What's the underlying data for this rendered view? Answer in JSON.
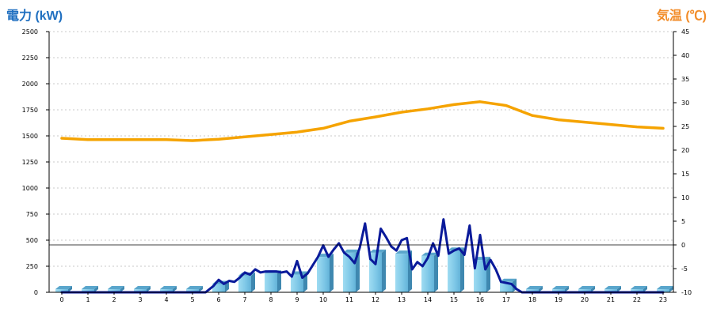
{
  "chart_data": {
    "type": "bar",
    "ylabel_left": "電力 (kW)",
    "ylabel_right": "気温 (℃)",
    "y_left_ticks": [
      "0",
      "250",
      "500",
      "750",
      "1000",
      "1250",
      "1500",
      "1750",
      "2000",
      "2250",
      "2500"
    ],
    "y_left_range": [
      0,
      2500
    ],
    "y_right_ticks": [
      "-10",
      "-5",
      "0",
      "5",
      "10",
      "15",
      "20",
      "25",
      "30",
      "35",
      "40",
      "45"
    ],
    "y_right_range": [
      -10,
      45
    ],
    "x_categories": [
      "0",
      "1",
      "2",
      "3",
      "4",
      "5",
      "6",
      "7",
      "8",
      "9",
      "10",
      "11",
      "12",
      "13",
      "14",
      "15",
      "16",
      "17",
      "18",
      "19",
      "20",
      "21",
      "22",
      "23"
    ],
    "grid": "horizontal dotted",
    "series": [
      {
        "kind": "bar",
        "axis": "left",
        "values": [
          30,
          30,
          30,
          30,
          30,
          30,
          80,
          160,
          180,
          170,
          340,
          380,
          380,
          370,
          350,
          400,
          310,
          100,
          30,
          30,
          30,
          30,
          30,
          30
        ]
      },
      {
        "kind": "line",
        "axis": "left",
        "x": [
          0,
          0.5,
          1,
          1.5,
          2,
          2.5,
          3,
          3.5,
          4,
          4.5,
          5,
          5.5,
          5.8,
          6,
          6.2,
          6.4,
          6.6,
          6.8,
          7,
          7.2,
          7.4,
          7.6,
          7.8,
          8,
          8.2,
          8.4,
          8.6,
          8.8,
          9,
          9.2,
          9.4,
          9.6,
          9.8,
          10,
          10.2,
          10.4,
          10.6,
          10.8,
          11,
          11.2,
          11.4,
          11.6,
          11.8,
          12,
          12.2,
          12.4,
          12.6,
          12.8,
          13,
          13.2,
          13.4,
          13.6,
          13.8,
          14,
          14.2,
          14.4,
          14.6,
          14.8,
          15,
          15.2,
          15.4,
          15.6,
          15.8,
          16,
          16.2,
          16.4,
          16.6,
          16.8,
          17,
          17.2,
          17.4,
          17.6,
          18,
          18.5,
          19,
          19.5,
          20,
          20.5,
          21,
          21.5,
          22,
          22.5,
          23
        ],
        "values": [
          0,
          0,
          0,
          0,
          0,
          0,
          0,
          0,
          0,
          0,
          0,
          0,
          60,
          120,
          80,
          110,
          100,
          140,
          190,
          170,
          220,
          190,
          200,
          200,
          200,
          190,
          200,
          150,
          300,
          140,
          180,
          260,
          340,
          450,
          340,
          410,
          470,
          380,
          340,
          280,
          430,
          660,
          320,
          270,
          610,
          530,
          440,
          400,
          500,
          520,
          220,
          290,
          250,
          330,
          470,
          350,
          700,
          370,
          400,
          420,
          360,
          640,
          230,
          550,
          220,
          310,
          220,
          100,
          90,
          80,
          30,
          0,
          0,
          0,
          0,
          0,
          0,
          0,
          0,
          0,
          0,
          0,
          0
        ]
      },
      {
        "kind": "line",
        "axis": "right",
        "x": [
          0,
          1,
          2,
          3,
          4,
          5,
          6,
          7,
          8,
          9,
          10,
          11,
          12,
          13,
          14,
          15,
          16,
          17,
          18,
          19,
          20,
          21,
          22,
          23
        ],
        "values": [
          22.5,
          22.2,
          22.2,
          22.2,
          22.2,
          22.0,
          22.3,
          22.8,
          23.3,
          23.8,
          24.6,
          26.1,
          27.0,
          28.0,
          28.7,
          29.6,
          30.2,
          29.4,
          27.3,
          26.4,
          25.9,
          25.4,
          24.9,
          24.6
        ]
      }
    ]
  }
}
